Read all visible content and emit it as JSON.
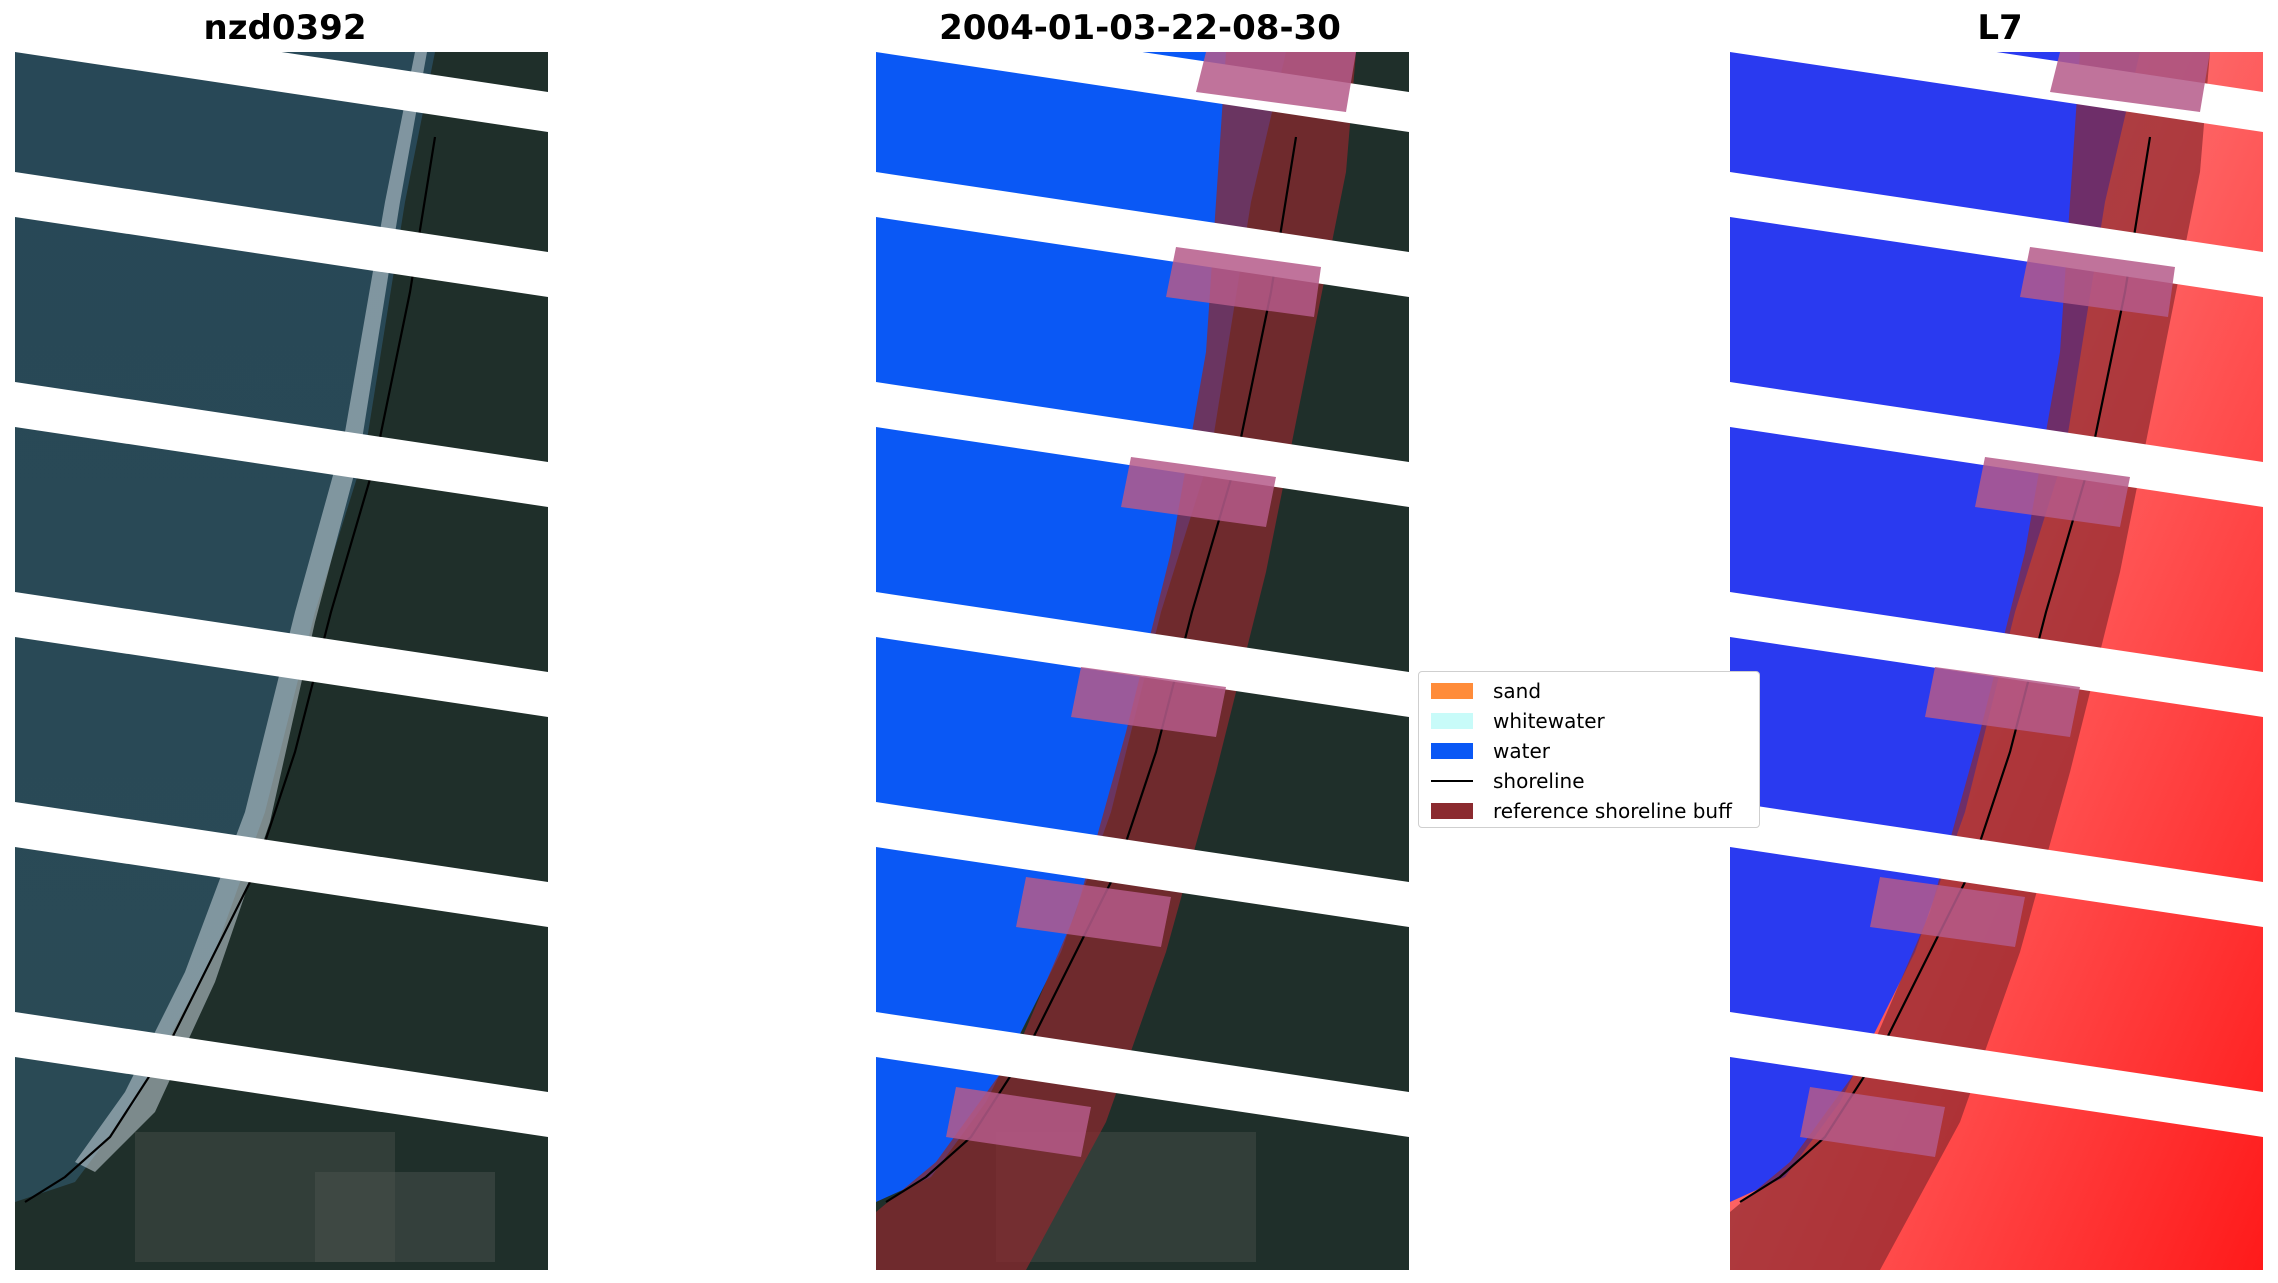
{
  "panels": [
    {
      "title": "nzd0392"
    },
    {
      "title": "2004-01-03-22-08-30"
    },
    {
      "title": "L7"
    }
  ],
  "legend": {
    "items": [
      {
        "label": "sand",
        "color": "#ff8c3a",
        "kind": "patch"
      },
      {
        "label": "whitewater",
        "color": "#c8fbf9",
        "kind": "patch"
      },
      {
        "label": "water",
        "color": "#0a58f5",
        "kind": "patch"
      },
      {
        "label": "shoreline",
        "color": "#000000",
        "kind": "line"
      },
      {
        "label": "reference shoreline buff",
        "color": "#8b2a2f",
        "kind": "patch"
      }
    ]
  },
  "colors": {
    "ocean": "#23424f",
    "land": "#1e2e28",
    "water_class": "#0a58f5",
    "buffer": "#8b2a2f",
    "ndwi_low": "#ff2020",
    "ndwi_high": "#2020ff"
  }
}
